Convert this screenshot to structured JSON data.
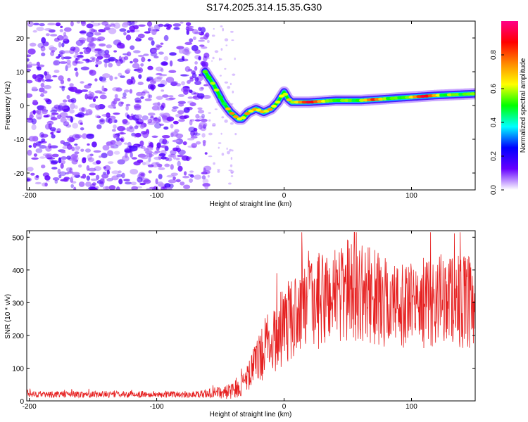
{
  "title": "S174.2025.314.15.35.G30",
  "chart_data": [
    {
      "type": "heatmap",
      "title": "S174.2025.314.15.35.G30",
      "xlabel": "Height of straight line (km)",
      "ylabel": "Frequency (Hz)",
      "xlim": [
        -202,
        150
      ],
      "ylim": [
        -25,
        25
      ],
      "xticks": [
        -200,
        -100,
        0,
        100
      ],
      "yticks": [
        20,
        10,
        0,
        -10,
        -20
      ],
      "xtick_labels": [
        "-200",
        "-100",
        "0",
        "100"
      ],
      "ytick_labels": [
        "20",
        "10",
        "0",
        "-10",
        "-20"
      ],
      "noise_region_x": [
        -202,
        -60
      ],
      "ridge": {
        "x": [
          -62,
          -55,
          -48,
          -42,
          -36,
          -33,
          -28,
          -22,
          -16,
          -10,
          -5,
          0,
          3,
          6,
          10,
          20,
          40,
          60,
          80,
          100,
          120,
          150
        ],
        "y": [
          10,
          6,
          1,
          -2,
          -4,
          -4,
          -2,
          -1,
          -2,
          -1,
          1,
          4,
          2,
          1,
          1,
          1,
          1.5,
          1.5,
          2,
          2.5,
          3,
          3.5
        ],
        "peaks": [
          {
            "x": 20,
            "y": 1,
            "amp": 0.95
          },
          {
            "x": 70,
            "y": 1.5,
            "amp": 0.85
          },
          {
            "x": 110,
            "y": 2.5,
            "amp": 0.95
          }
        ]
      },
      "colorbar": {
        "label": "Normalized spectral amplitude",
        "range": [
          0,
          1
        ],
        "ticks": [
          0.0,
          0.2,
          0.4,
          0.6,
          0.8
        ],
        "tick_labels": [
          "0.0",
          "0.2",
          "0.4",
          "0.6",
          "0.8"
        ],
        "colors": [
          "#ffffff",
          "#6600ff",
          "#0000ff",
          "#00ffff",
          "#00ff00",
          "#ffff00",
          "#ff8800",
          "#ff0000",
          "#ff0088"
        ]
      }
    },
    {
      "type": "line",
      "xlabel": "Height of straight line (km)",
      "ylabel": "SNR (10 * v/v)",
      "xlim": [
        -202,
        150
      ],
      "ylim": [
        0,
        520
      ],
      "xticks": [
        -200,
        -100,
        0,
        100
      ],
      "yticks": [
        0,
        100,
        200,
        300,
        400,
        500
      ],
      "xtick_labels": [
        "-200",
        "-100",
        "0",
        "100"
      ],
      "ytick_labels": [
        "0",
        "100",
        "200",
        "300",
        "400",
        "500"
      ],
      "color": "#e62020",
      "envelope": {
        "x": [
          -202,
          -100,
          -70,
          -60,
          -40,
          -30,
          -20,
          -10,
          0,
          10,
          20,
          30,
          40,
          50,
          60,
          70,
          80,
          90,
          100,
          110,
          120,
          130,
          140,
          150
        ],
        "mean": [
          20,
          20,
          20,
          22,
          30,
          60,
          130,
          190,
          230,
          270,
          290,
          310,
          330,
          340,
          330,
          320,
          300,
          290,
          290,
          300,
          310,
          320,
          300,
          280
        ],
        "spread": [
          10,
          10,
          10,
          14,
          25,
          40,
          80,
          110,
          120,
          130,
          140,
          150,
          160,
          160,
          150,
          150,
          140,
          130,
          130,
          140,
          140,
          140,
          150,
          150
        ]
      }
    }
  ]
}
